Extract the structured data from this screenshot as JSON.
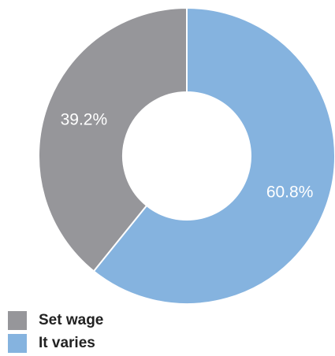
{
  "chart_data": {
    "type": "pie",
    "donut": true,
    "categories": [
      "Set wage",
      "It varies"
    ],
    "values": [
      39.2,
      60.8
    ],
    "labels": [
      "39.2%",
      "60.8%"
    ],
    "colors": [
      "#96969a",
      "#85b3df"
    ],
    "title": "",
    "legend_position": "bottom-left"
  },
  "legend": {
    "items": [
      {
        "label": "Set wage",
        "color": "#96969a"
      },
      {
        "label": "It varies",
        "color": "#85b3df"
      }
    ]
  }
}
